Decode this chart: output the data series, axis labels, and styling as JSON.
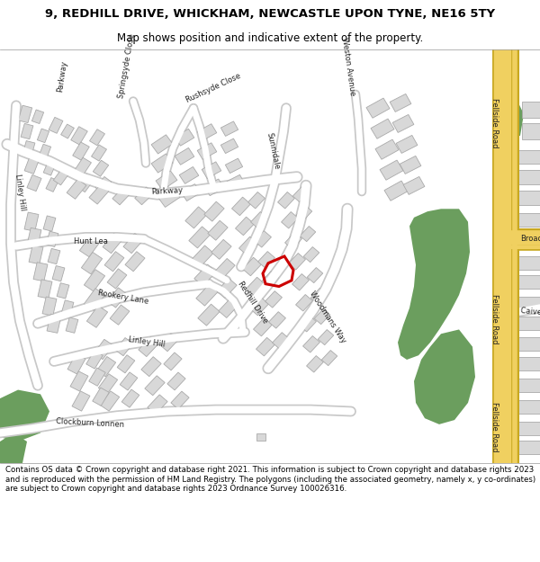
{
  "title": "9, REDHILL DRIVE, WHICKHAM, NEWCASTLE UPON TYNE, NE16 5TY",
  "subtitle": "Map shows position and indicative extent of the property.",
  "footer": "Contains OS data © Crown copyright and database right 2021. This information is subject to Crown copyright and database rights 2023 and is reproduced with the permission of HM Land Registry. The polygons (including the associated geometry, namely x, y co-ordinates) are subject to Crown copyright and database rights 2023 Ordnance Survey 100026316.",
  "bg_color": "#ffffff",
  "map_bg": "#f0f0f0",
  "road_color": "#ffffff",
  "road_outline": "#c8c8c8",
  "building_color": "#d8d8d8",
  "building_outline": "#aaaaaa",
  "green_color": "#6b9e5e",
  "highlight_color": "#cc0000",
  "road_yellow": "#f0d060",
  "road_yellow_outline": "#c8a820",
  "title_fontsize": 9.5,
  "subtitle_fontsize": 8.5,
  "footer_fontsize": 6.2,
  "label_fontsize": 6.0
}
